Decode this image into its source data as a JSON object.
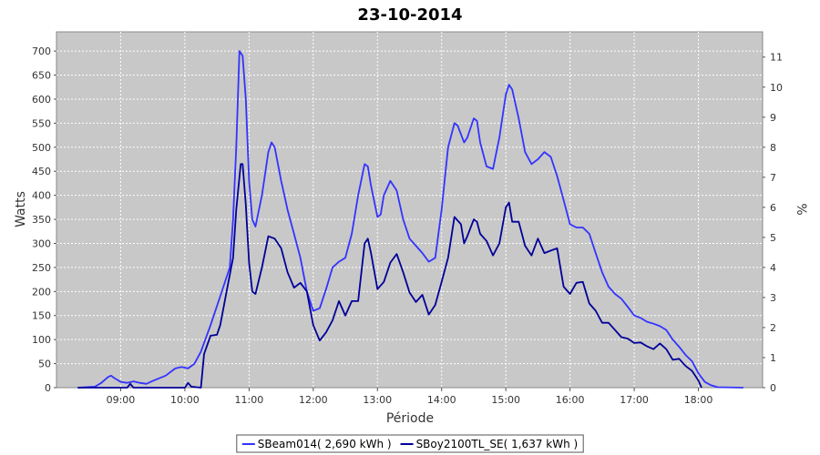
{
  "chart_data": {
    "type": "line",
    "title": "23-10-2014",
    "xlabel": "Période",
    "ylabel": "Watts",
    "ylabel_right": "%",
    "xlim": [
      8.0,
      19.0
    ],
    "ylim": [
      0,
      740
    ],
    "ylim_right": [
      0,
      11.84
    ],
    "x_ticks": [
      "09:00",
      "10:00",
      "11:00",
      "12:00",
      "13:00",
      "14:00",
      "15:00",
      "16:00",
      "17:00",
      "18:00"
    ],
    "y_ticks": [
      0,
      50,
      100,
      150,
      200,
      250,
      300,
      350,
      400,
      450,
      500,
      550,
      600,
      650,
      700
    ],
    "y_ticks_right": [
      0,
      1,
      2,
      3,
      4,
      5,
      6,
      7,
      8,
      9,
      10,
      11
    ],
    "grid": true,
    "legend": "bottom-center",
    "plot_background": "#c8c8c8",
    "series": [
      {
        "name": "SBeam014( 2,690 kWh )",
        "color": "#3333ff",
        "points": [
          [
            8.33,
            0
          ],
          [
            8.6,
            2
          ],
          [
            8.7,
            10
          ],
          [
            8.8,
            22
          ],
          [
            8.85,
            25
          ],
          [
            8.9,
            20
          ],
          [
            9.0,
            12
          ],
          [
            9.1,
            10
          ],
          [
            9.2,
            13
          ],
          [
            9.3,
            10
          ],
          [
            9.4,
            8
          ],
          [
            9.5,
            14
          ],
          [
            9.7,
            25
          ],
          [
            9.85,
            40
          ],
          [
            9.95,
            43
          ],
          [
            10.05,
            40
          ],
          [
            10.15,
            50
          ],
          [
            10.25,
            75
          ],
          [
            10.4,
            130
          ],
          [
            10.55,
            190
          ],
          [
            10.7,
            250
          ],
          [
            10.75,
            350
          ],
          [
            10.8,
            500
          ],
          [
            10.85,
            700
          ],
          [
            10.9,
            690
          ],
          [
            10.95,
            600
          ],
          [
            11.0,
            430
          ],
          [
            11.05,
            350
          ],
          [
            11.1,
            335
          ],
          [
            11.2,
            400
          ],
          [
            11.3,
            490
          ],
          [
            11.35,
            510
          ],
          [
            11.4,
            500
          ],
          [
            11.5,
            430
          ],
          [
            11.6,
            370
          ],
          [
            11.7,
            320
          ],
          [
            11.8,
            270
          ],
          [
            11.9,
            200
          ],
          [
            12.0,
            160
          ],
          [
            12.1,
            165
          ],
          [
            12.2,
            205
          ],
          [
            12.3,
            250
          ],
          [
            12.4,
            262
          ],
          [
            12.5,
            270
          ],
          [
            12.6,
            320
          ],
          [
            12.7,
            400
          ],
          [
            12.8,
            465
          ],
          [
            12.85,
            460
          ],
          [
            12.9,
            420
          ],
          [
            13.0,
            355
          ],
          [
            13.05,
            360
          ],
          [
            13.1,
            400
          ],
          [
            13.2,
            430
          ],
          [
            13.3,
            410
          ],
          [
            13.4,
            350
          ],
          [
            13.5,
            310
          ],
          [
            13.6,
            295
          ],
          [
            13.7,
            280
          ],
          [
            13.8,
            262
          ],
          [
            13.9,
            270
          ],
          [
            14.0,
            370
          ],
          [
            14.1,
            500
          ],
          [
            14.2,
            550
          ],
          [
            14.25,
            545
          ],
          [
            14.35,
            510
          ],
          [
            14.4,
            520
          ],
          [
            14.5,
            560
          ],
          [
            14.55,
            555
          ],
          [
            14.6,
            510
          ],
          [
            14.7,
            460
          ],
          [
            14.8,
            455
          ],
          [
            14.9,
            520
          ],
          [
            15.0,
            610
          ],
          [
            15.05,
            630
          ],
          [
            15.1,
            620
          ],
          [
            15.2,
            560
          ],
          [
            15.3,
            490
          ],
          [
            15.4,
            465
          ],
          [
            15.5,
            475
          ],
          [
            15.6,
            490
          ],
          [
            15.7,
            480
          ],
          [
            15.8,
            440
          ],
          [
            15.9,
            390
          ],
          [
            16.0,
            340
          ],
          [
            16.1,
            333
          ],
          [
            16.2,
            333
          ],
          [
            16.3,
            320
          ],
          [
            16.4,
            280
          ],
          [
            16.5,
            240
          ],
          [
            16.6,
            210
          ],
          [
            16.7,
            195
          ],
          [
            16.8,
            185
          ],
          [
            16.9,
            168
          ],
          [
            17.0,
            150
          ],
          [
            17.1,
            145
          ],
          [
            17.2,
            137
          ],
          [
            17.3,
            133
          ],
          [
            17.4,
            128
          ],
          [
            17.5,
            120
          ],
          [
            17.6,
            100
          ],
          [
            17.7,
            85
          ],
          [
            17.8,
            68
          ],
          [
            17.9,
            55
          ],
          [
            18.0,
            30
          ],
          [
            18.1,
            12
          ],
          [
            18.2,
            5
          ],
          [
            18.3,
            1
          ],
          [
            18.7,
            0
          ]
        ]
      },
      {
        "name": "SBoy2100TL_SE( 1,637 kWh )",
        "color": "#000099",
        "points": [
          [
            8.33,
            0
          ],
          [
            9.1,
            0
          ],
          [
            9.15,
            8
          ],
          [
            9.2,
            0
          ],
          [
            10.0,
            0
          ],
          [
            10.05,
            10
          ],
          [
            10.1,
            2
          ],
          [
            10.25,
            0
          ],
          [
            10.3,
            70
          ],
          [
            10.4,
            108
          ],
          [
            10.5,
            110
          ],
          [
            10.55,
            130
          ],
          [
            10.65,
            200
          ],
          [
            10.75,
            270
          ],
          [
            10.8,
            370
          ],
          [
            10.87,
            465
          ],
          [
            10.9,
            465
          ],
          [
            10.95,
            380
          ],
          [
            11.0,
            260
          ],
          [
            11.05,
            200
          ],
          [
            11.1,
            195
          ],
          [
            11.2,
            250
          ],
          [
            11.3,
            315
          ],
          [
            11.4,
            310
          ],
          [
            11.5,
            290
          ],
          [
            11.6,
            240
          ],
          [
            11.7,
            208
          ],
          [
            11.8,
            218
          ],
          [
            11.9,
            200
          ],
          [
            12.0,
            130
          ],
          [
            12.1,
            98
          ],
          [
            12.2,
            115
          ],
          [
            12.3,
            140
          ],
          [
            12.4,
            180
          ],
          [
            12.5,
            150
          ],
          [
            12.6,
            180
          ],
          [
            12.7,
            180
          ],
          [
            12.8,
            300
          ],
          [
            12.85,
            310
          ],
          [
            12.9,
            280
          ],
          [
            13.0,
            205
          ],
          [
            13.1,
            220
          ],
          [
            13.2,
            260
          ],
          [
            13.3,
            278
          ],
          [
            13.4,
            240
          ],
          [
            13.5,
            198
          ],
          [
            13.6,
            178
          ],
          [
            13.7,
            193
          ],
          [
            13.8,
            152
          ],
          [
            13.9,
            172
          ],
          [
            14.0,
            220
          ],
          [
            14.1,
            270
          ],
          [
            14.2,
            355
          ],
          [
            14.3,
            340
          ],
          [
            14.35,
            300
          ],
          [
            14.4,
            315
          ],
          [
            14.5,
            350
          ],
          [
            14.55,
            345
          ],
          [
            14.6,
            320
          ],
          [
            14.7,
            305
          ],
          [
            14.8,
            275
          ],
          [
            14.9,
            300
          ],
          [
            15.0,
            375
          ],
          [
            15.05,
            385
          ],
          [
            15.1,
            345
          ],
          [
            15.2,
            345
          ],
          [
            15.3,
            295
          ],
          [
            15.4,
            275
          ],
          [
            15.5,
            310
          ],
          [
            15.6,
            280
          ],
          [
            15.7,
            285
          ],
          [
            15.8,
            290
          ],
          [
            15.9,
            210
          ],
          [
            16.0,
            195
          ],
          [
            16.1,
            218
          ],
          [
            16.2,
            220
          ],
          [
            16.3,
            175
          ],
          [
            16.4,
            160
          ],
          [
            16.5,
            135
          ],
          [
            16.6,
            135
          ],
          [
            16.7,
            120
          ],
          [
            16.8,
            105
          ],
          [
            16.9,
            102
          ],
          [
            17.0,
            93
          ],
          [
            17.1,
            94
          ],
          [
            17.2,
            86
          ],
          [
            17.3,
            80
          ],
          [
            17.4,
            92
          ],
          [
            17.5,
            80
          ],
          [
            17.6,
            58
          ],
          [
            17.7,
            60
          ],
          [
            17.8,
            45
          ],
          [
            17.9,
            35
          ],
          [
            18.0,
            15
          ],
          [
            18.05,
            0
          ]
        ]
      }
    ]
  }
}
